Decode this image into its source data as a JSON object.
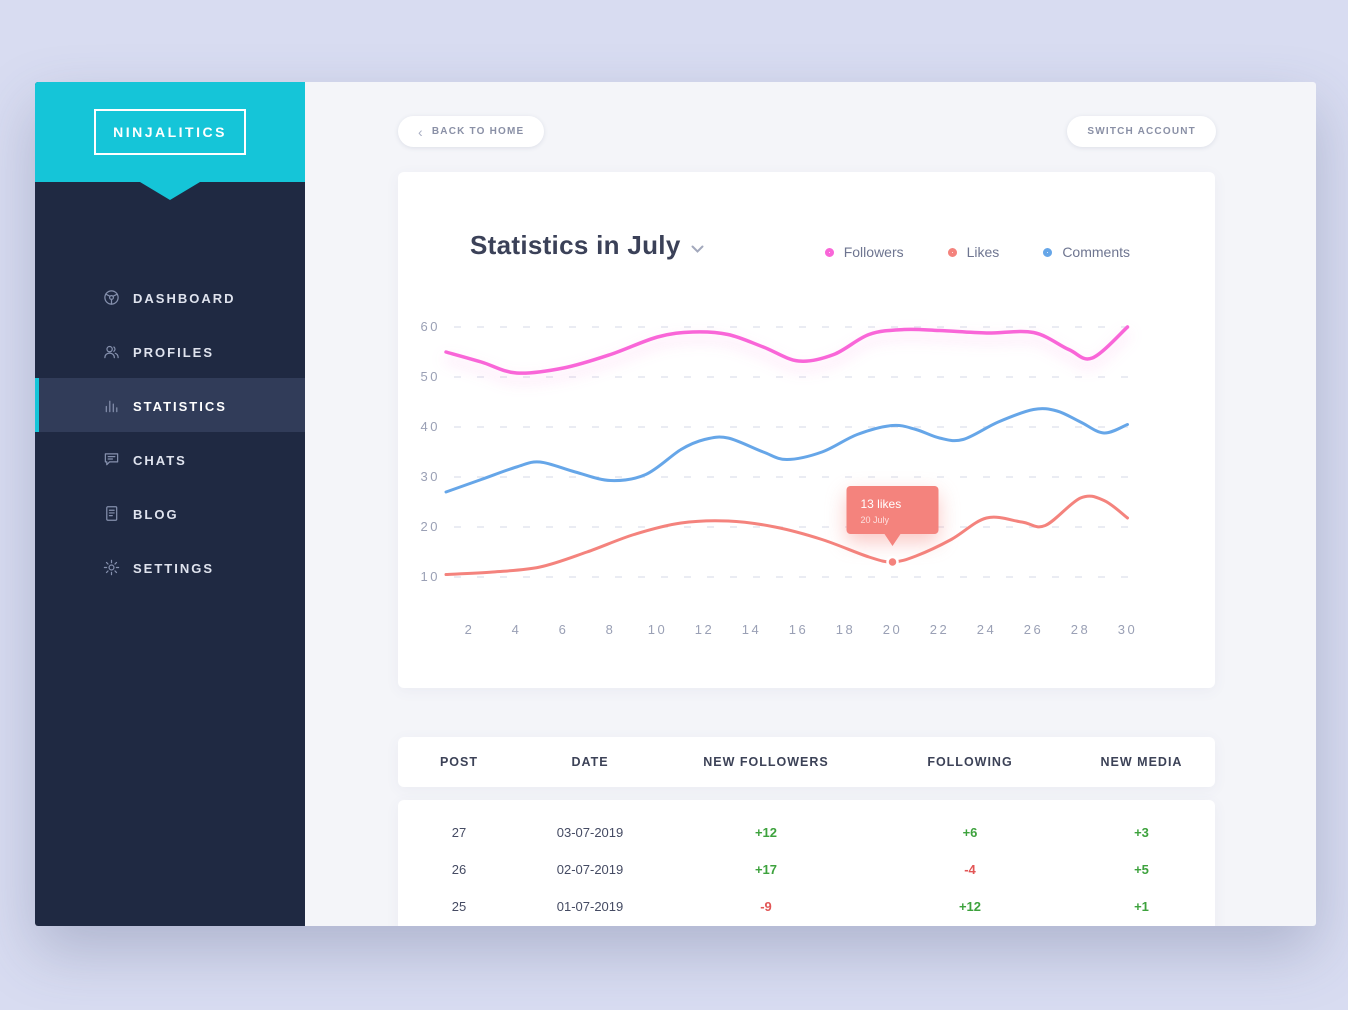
{
  "app": {
    "logo": "NINJALITICS"
  },
  "colors": {
    "accent_cyan": "#15c5d8",
    "sidebar_navy": "#1f2942",
    "positive": "#3da23d",
    "negative": "#e25555"
  },
  "sidebar": {
    "items": [
      {
        "label": "DASHBOARD",
        "icon": "dashboard-icon",
        "active": false
      },
      {
        "label": "PROFILES",
        "icon": "profiles-icon",
        "active": false
      },
      {
        "label": "STATISTICS",
        "icon": "statistics-icon",
        "active": true
      },
      {
        "label": "CHATS",
        "icon": "chats-icon",
        "active": false
      },
      {
        "label": "BLOG",
        "icon": "blog-icon",
        "active": false
      },
      {
        "label": "SETTINGS",
        "icon": "settings-icon",
        "active": false
      }
    ]
  },
  "topbar": {
    "back_button": "BACK TO HOME",
    "switch_button": "SWITCH ACCOUNT"
  },
  "chart_data": {
    "type": "line",
    "title": "Statistics in July",
    "legend_position": "top-right",
    "grid": "dashed-horizontal",
    "legend": [
      {
        "label": "Followers",
        "color": "#f966d8"
      },
      {
        "label": "Likes",
        "color": "#f4837d"
      },
      {
        "label": "Comments",
        "color": "#66a6e8"
      }
    ],
    "x_ticks": [
      2,
      4,
      6,
      8,
      10,
      12,
      14,
      16,
      18,
      20,
      22,
      24,
      26,
      28,
      30
    ],
    "y_ticks": [
      10,
      20,
      30,
      40,
      50,
      60
    ],
    "xlim": [
      1,
      30
    ],
    "ylim": [
      10,
      60
    ],
    "series": [
      {
        "name": "Followers",
        "color": "#f966d8",
        "glow": true,
        "points": [
          [
            1,
            55
          ],
          [
            2.5,
            53
          ],
          [
            4,
            50.8
          ],
          [
            6,
            51.8
          ],
          [
            8,
            54.5
          ],
          [
            10,
            58
          ],
          [
            11.5,
            59
          ],
          [
            13,
            58.5
          ],
          [
            14.5,
            56
          ],
          [
            16,
            53.2
          ],
          [
            17.5,
            54.5
          ],
          [
            19,
            58.5
          ],
          [
            20.5,
            59.5
          ],
          [
            22,
            59.3
          ],
          [
            24,
            58.8
          ],
          [
            26,
            58.9
          ],
          [
            27.5,
            55.5
          ],
          [
            28.5,
            53.8
          ],
          [
            30,
            60
          ]
        ]
      },
      {
        "name": "Likes",
        "color": "#f4837d",
        "glow": false,
        "points": [
          [
            1,
            10.5
          ],
          [
            3,
            11
          ],
          [
            5,
            12
          ],
          [
            7,
            15
          ],
          [
            9,
            18.5
          ],
          [
            11,
            20.8
          ],
          [
            13,
            21.2
          ],
          [
            15,
            20
          ],
          [
            17,
            17.5
          ],
          [
            19,
            14
          ],
          [
            20,
            13
          ],
          [
            21,
            14.2
          ],
          [
            22.5,
            17.5
          ],
          [
            24,
            21.8
          ],
          [
            25.5,
            21
          ],
          [
            26.5,
            20.3
          ],
          [
            28,
            25.8
          ],
          [
            29,
            25.3
          ],
          [
            30,
            21.8
          ]
        ]
      },
      {
        "name": "Comments",
        "color": "#66a6e8",
        "glow": false,
        "points": [
          [
            1,
            27
          ],
          [
            2.5,
            29.5
          ],
          [
            4,
            32
          ],
          [
            5,
            33
          ],
          [
            6.5,
            31
          ],
          [
            8,
            29.3
          ],
          [
            9.5,
            30.5
          ],
          [
            11,
            35.5
          ],
          [
            12,
            37.5
          ],
          [
            13,
            37.8
          ],
          [
            14.5,
            35
          ],
          [
            15.5,
            33.5
          ],
          [
            17,
            35
          ],
          [
            18.5,
            38.5
          ],
          [
            20,
            40.3
          ],
          [
            21,
            39.5
          ],
          [
            22,
            37.8
          ],
          [
            23,
            37.5
          ],
          [
            24.5,
            41
          ],
          [
            26,
            43.5
          ],
          [
            27,
            43.2
          ],
          [
            28,
            41
          ],
          [
            29,
            38.8
          ],
          [
            30,
            40.5
          ]
        ]
      }
    ],
    "tooltip": {
      "series": "Likes",
      "x": 20,
      "value": 13,
      "label": "13 likes",
      "sublabel": "20 July",
      "color": "#f4837d"
    }
  },
  "table": {
    "headers": [
      "POST",
      "DATE",
      "NEW FOLLOWERS",
      "FOLLOWING",
      "NEW MEDIA"
    ],
    "rows": [
      {
        "post": "27",
        "date": "03-07-2019",
        "new_followers": "+12",
        "following": "+6",
        "new_media": "+3"
      },
      {
        "post": "26",
        "date": "02-07-2019",
        "new_followers": "+17",
        "following": "-4",
        "new_media": "+5"
      },
      {
        "post": "25",
        "date": "01-07-2019",
        "new_followers": "-9",
        "following": "+12",
        "new_media": "+1"
      }
    ]
  }
}
